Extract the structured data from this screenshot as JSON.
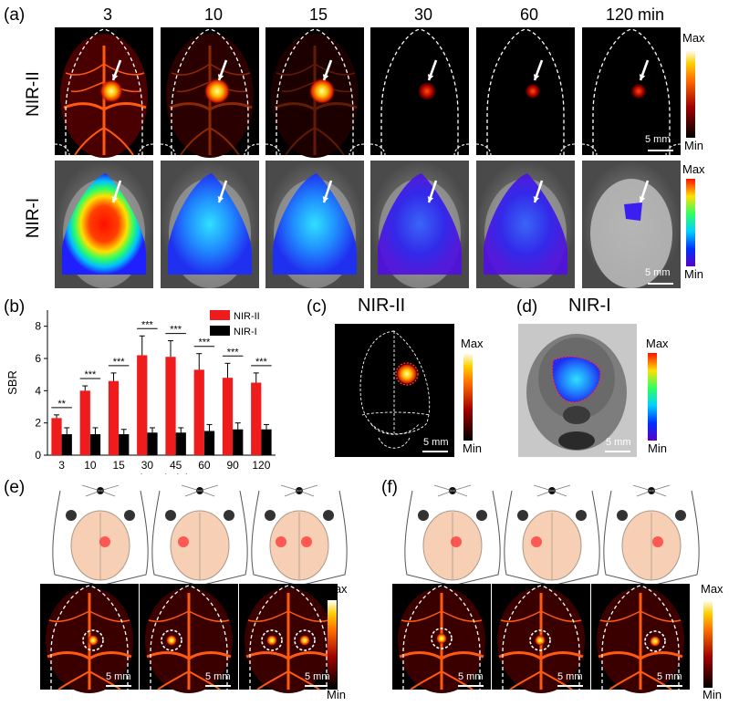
{
  "panel_labels": {
    "a": "(a)",
    "b": "(b)",
    "c": "(c)",
    "d": "(d)",
    "e": "(e)",
    "f": "(f)"
  },
  "panel_a": {
    "time_labels": [
      "3",
      "10",
      "15",
      "30",
      "60",
      "120 min"
    ],
    "row_labels": [
      "NIR-II",
      "NIR-I"
    ],
    "colorbar": {
      "max": "Max",
      "min": "Min"
    },
    "scale_bar": "5 mm"
  },
  "panel_c": {
    "title": "NIR-II",
    "colorbar_max": "Max",
    "colorbar_min": "Min",
    "scale_bar": "5 mm"
  },
  "panel_d": {
    "title": "NIR-I",
    "colorbar_max": "Max",
    "colorbar_min": "Min",
    "scale_bar": "5 mm"
  },
  "panel_e": {
    "colorbar_max": "Max",
    "colorbar_min": "Min",
    "scale_bar": "5 mm"
  },
  "panel_f": {
    "colorbar_max": "Max",
    "colorbar_min": "Min",
    "scale_bar": "5 mm"
  },
  "chart_data": {
    "type": "bar",
    "categories": [
      "3",
      "10",
      "15",
      "30",
      "45",
      "60",
      "90",
      "120"
    ],
    "xlabel": "Time (min)",
    "ylabel": "SBR",
    "ylim": [
      0,
      9
    ],
    "yticks": [
      "0",
      "2",
      "4",
      "6",
      "8"
    ],
    "series": [
      {
        "name": "NIR-II",
        "color": "#ee1c1c",
        "values": [
          2.3,
          4.0,
          4.6,
          6.2,
          6.1,
          5.3,
          4.8,
          4.5
        ],
        "errors": [
          0.2,
          0.3,
          0.5,
          1.2,
          1.0,
          1.0,
          0.9,
          0.6
        ]
      },
      {
        "name": "NIR-I",
        "color": "#000000",
        "values": [
          1.3,
          1.3,
          1.3,
          1.4,
          1.4,
          1.5,
          1.6,
          1.6
        ],
        "errors": [
          0.4,
          0.4,
          0.3,
          0.3,
          0.3,
          0.4,
          0.4,
          0.3
        ]
      }
    ],
    "significance": [
      "**",
      "***",
      "***",
      "***",
      "***",
      "***",
      "***",
      "***"
    ],
    "legend_position": "top-right"
  }
}
